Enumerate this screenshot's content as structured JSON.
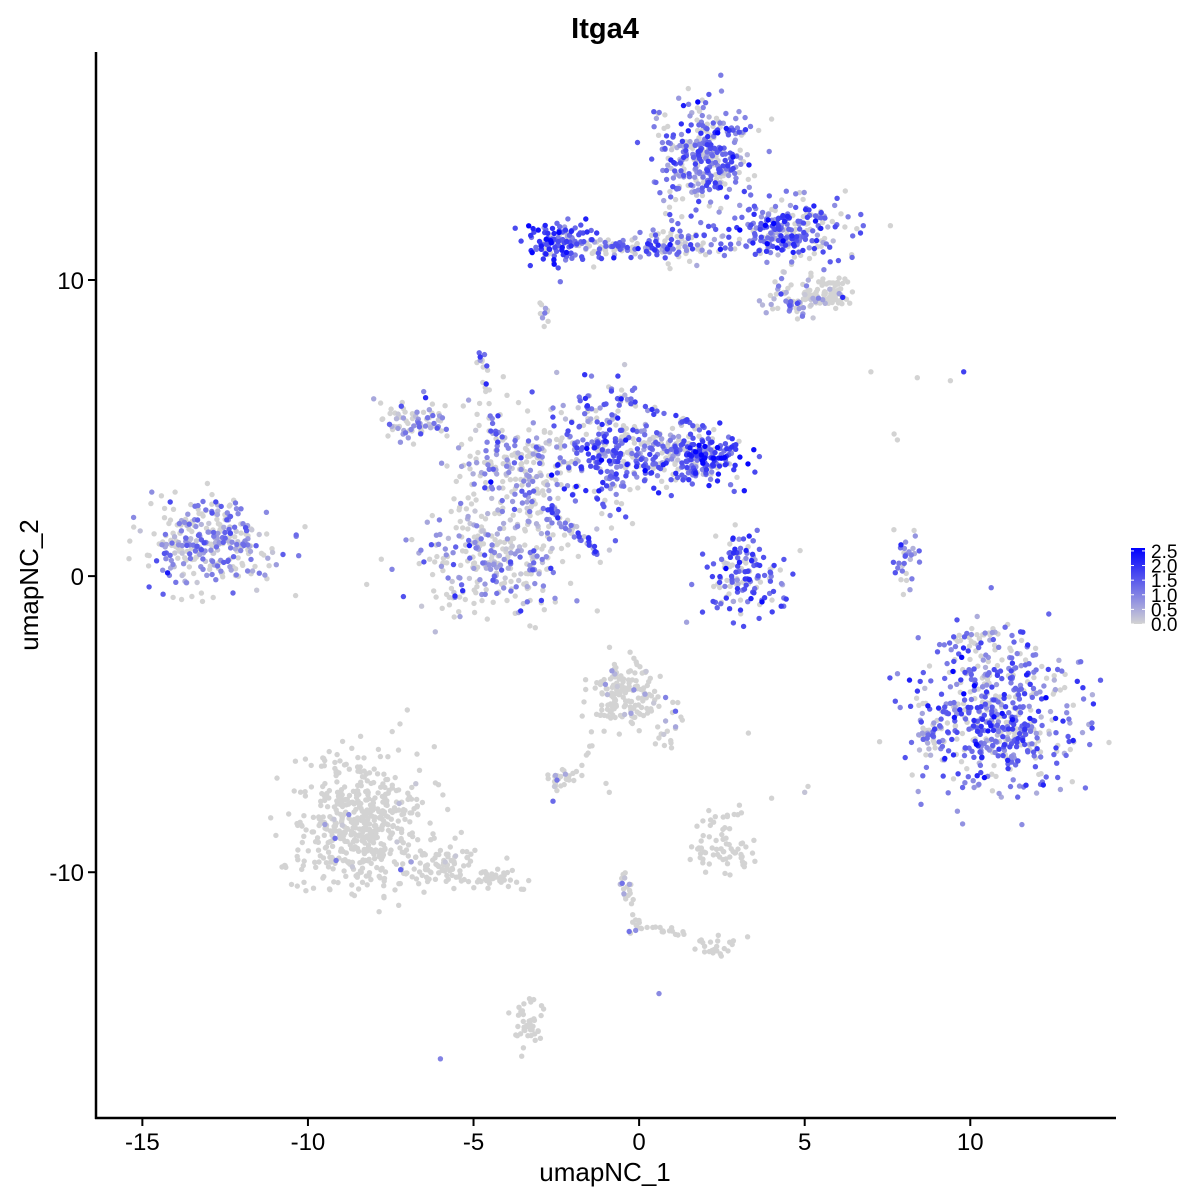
{
  "chart_data": {
    "type": "scatter",
    "title": "Itga4",
    "xlabel": "umapNC_1",
    "ylabel": "umapNC_2",
    "xlim": [
      -16.4,
      14.4
    ],
    "ylim": [
      -18.3,
      17.7
    ],
    "x_ticks": [
      -15,
      -10,
      -5,
      0,
      5,
      10
    ],
    "y_ticks": [
      -10,
      0,
      10
    ],
    "x_tick_labels": [
      "-15",
      "-10",
      "-5",
      "0",
      "5",
      "10"
    ],
    "y_tick_labels": [
      "-10",
      "0",
      "10"
    ],
    "grid": false,
    "color_scale": {
      "low": "#d3d3d3",
      "high": "#0000ff",
      "range": [
        0,
        2.6
      ],
      "ticks": [
        0.0,
        0.5,
        1.0,
        1.5,
        2.0,
        2.5
      ],
      "tick_labels": [
        "0.0",
        "0.5",
        "1.0",
        "1.5",
        "2.0",
        "2.5"
      ],
      "placement": "right"
    },
    "clusters": [
      {
        "cx": -12.9,
        "cy": 1.1,
        "sx": 1.0,
        "sy": 0.75,
        "n": 320,
        "expr_frac": 0.55,
        "expr_mean": 0.9
      },
      {
        "cx": -4.3,
        "cy": 0.6,
        "sx": 1.2,
        "sy": 1.0,
        "n": 300,
        "expr_frac": 0.45,
        "expr_mean": 0.8
      },
      {
        "cx": -6.9,
        "cy": 5.2,
        "sx": 0.6,
        "sy": 0.4,
        "n": 80,
        "expr_frac": 0.5,
        "expr_mean": 0.8
      },
      {
        "cx": -3.8,
        "cy": 3.6,
        "sx": 0.9,
        "sy": 1.0,
        "n": 220,
        "expr_frac": 0.5,
        "expr_mean": 0.9
      },
      {
        "cx": -1.2,
        "cy": 4.4,
        "sx": 0.9,
        "sy": 1.0,
        "n": 260,
        "expr_frac": 0.75,
        "expr_mean": 1.3
      },
      {
        "cx": 0.6,
        "cy": 4.1,
        "sx": 0.8,
        "sy": 0.5,
        "n": 160,
        "expr_frac": 0.7,
        "expr_mean": 1.2
      },
      {
        "cx": 2.1,
        "cy": 4.0,
        "sx": 0.5,
        "sy": 0.5,
        "n": 150,
        "expr_frac": 0.85,
        "expr_mean": 1.7
      },
      {
        "cx": -2.5,
        "cy": 11.3,
        "sx": 0.5,
        "sy": 0.35,
        "n": 120,
        "expr_frac": 0.85,
        "expr_mean": 1.6
      },
      {
        "cx": -0.5,
        "cy": 11.1,
        "sx": 1.0,
        "sy": 0.2,
        "n": 70,
        "expr_frac": 0.6,
        "expr_mean": 1.1
      },
      {
        "cx": 1.9,
        "cy": 14.2,
        "sx": 0.7,
        "sy": 0.9,
        "n": 330,
        "expr_frac": 0.7,
        "expr_mean": 1.2
      },
      {
        "cx": 4.4,
        "cy": 11.7,
        "sx": 0.9,
        "sy": 0.55,
        "n": 260,
        "expr_frac": 0.75,
        "expr_mean": 1.4
      },
      {
        "cx": 1.4,
        "cy": 11.2,
        "sx": 0.6,
        "sy": 0.35,
        "n": 60,
        "expr_frac": 0.6,
        "expr_mean": 1.1
      },
      {
        "cx": 4.9,
        "cy": 9.3,
        "sx": 0.5,
        "sy": 0.35,
        "n": 70,
        "expr_frac": 0.5,
        "expr_mean": 0.9
      },
      {
        "cx": 5.7,
        "cy": 9.6,
        "sx": 0.35,
        "sy": 0.25,
        "n": 70,
        "expr_frac": 0.05,
        "expr_mean": 0.4
      },
      {
        "cx": 3.2,
        "cy": -0.3,
        "sx": 0.7,
        "sy": 0.6,
        "n": 110,
        "expr_frac": 0.7,
        "expr_mean": 1.3
      },
      {
        "cx": 3.1,
        "cy": 0.8,
        "sx": 0.25,
        "sy": 0.35,
        "n": 40,
        "expr_frac": 0.8,
        "expr_mean": 1.5
      },
      {
        "cx": 8.0,
        "cy": 0.4,
        "sx": 0.2,
        "sy": 0.5,
        "n": 30,
        "expr_frac": 0.8,
        "expr_mean": 1.2
      },
      {
        "cx": 10.8,
        "cy": -4.7,
        "sx": 1.2,
        "sy": 1.3,
        "n": 560,
        "expr_frac": 0.72,
        "expr_mean": 1.3
      },
      {
        "cx": 8.8,
        "cy": -5.2,
        "sx": 0.25,
        "sy": 0.4,
        "n": 40,
        "expr_frac": 0.6,
        "expr_mean": 1.0
      },
      {
        "cx": -8.5,
        "cy": -8.4,
        "sx": 1.0,
        "sy": 1.1,
        "n": 520,
        "expr_frac": 0.02,
        "expr_mean": 0.5
      },
      {
        "cx": -6.1,
        "cy": -9.8,
        "sx": 0.9,
        "sy": 0.35,
        "n": 90,
        "expr_frac": 0.04,
        "expr_mean": 0.5
      },
      {
        "cx": -4.3,
        "cy": -10.3,
        "sx": 0.5,
        "sy": 0.2,
        "n": 30,
        "expr_frac": 0.0,
        "expr_mean": 0.3
      },
      {
        "cx": -0.4,
        "cy": -4.0,
        "sx": 0.5,
        "sy": 0.6,
        "n": 140,
        "expr_frac": 0.08,
        "expr_mean": 0.6
      },
      {
        "cx": 0.9,
        "cy": -4.8,
        "sx": 0.2,
        "sy": 0.5,
        "n": 20,
        "expr_frac": 0.1,
        "expr_mean": 0.6
      },
      {
        "cx": -2.4,
        "cy": -6.8,
        "sx": 0.25,
        "sy": 0.2,
        "n": 25,
        "expr_frac": 0.3,
        "expr_mean": 0.8
      },
      {
        "cx": 2.4,
        "cy": -9.2,
        "sx": 0.5,
        "sy": 0.4,
        "n": 60,
        "expr_frac": 0.05,
        "expr_mean": 0.5
      },
      {
        "cx": -3.3,
        "cy": -15.2,
        "sx": 0.25,
        "sy": 0.45,
        "n": 40,
        "expr_frac": 0.0,
        "expr_mean": 0.3
      },
      {
        "cx": 2.3,
        "cy": -12.6,
        "sx": 0.3,
        "sy": 0.2,
        "n": 20,
        "expr_frac": 0.0,
        "expr_mean": 0.3
      },
      {
        "cx": 10.0,
        "cy": -2.1,
        "sx": 0.6,
        "sy": 0.2,
        "n": 30,
        "expr_frac": 0.4,
        "expr_mean": 0.8
      }
    ],
    "stems": [
      {
        "x1": -4.8,
        "y1": 7.5,
        "x2": -4.3,
        "y2": 4.2,
        "n": 25,
        "expr_frac": 0.6,
        "expr_mean": 1.2
      },
      {
        "x1": -2.8,
        "y1": 2.4,
        "x2": -1.2,
        "y2": 0.7,
        "n": 35,
        "expr_frac": 0.9,
        "expr_mean": 1.3
      },
      {
        "x1": -2.5,
        "y1": 11.3,
        "x2": 1.2,
        "y2": 11.0,
        "n": 40,
        "expr_frac": 0.6,
        "expr_mean": 1.2
      },
      {
        "x1": -0.4,
        "y1": -3.5,
        "x2": -1.9,
        "y2": -6.7,
        "n": 18,
        "expr_frac": 0.1,
        "expr_mean": 0.6
      },
      {
        "x1": -0.5,
        "y1": -9.8,
        "x2": -0.1,
        "y2": -12.0,
        "n": 25,
        "expr_frac": 0.2,
        "expr_mean": 0.7
      },
      {
        "x1": -0.1,
        "y1": -11.7,
        "x2": 2.2,
        "y2": -12.4,
        "n": 20,
        "expr_frac": 0.0,
        "expr_mean": 0.3
      },
      {
        "x1": 1.8,
        "y1": -8.5,
        "x2": 3.2,
        "y2": -7.8,
        "n": 12,
        "expr_frac": 0.0,
        "expr_mean": 0.3
      },
      {
        "x1": -2.9,
        "y1": 9.2,
        "x2": -2.8,
        "y2": 8.5,
        "n": 10,
        "expr_frac": 0.3,
        "expr_mean": 0.8
      },
      {
        "x1": -0.5,
        "y1": 6.0,
        "x2": 1.8,
        "y2": 5.0,
        "n": 25,
        "expr_frac": 0.8,
        "expr_mean": 1.4
      }
    ],
    "single_points": [
      {
        "x": -4.8,
        "y": 7.4,
        "v": 1.9
      },
      {
        "x": -4.6,
        "y": 7.1,
        "v": 1.6
      },
      {
        "x": 9.8,
        "y": 6.9,
        "v": 1.8
      },
      {
        "x": 7.0,
        "y": 6.9,
        "v": 0.0
      },
      {
        "x": 8.4,
        "y": 6.7,
        "v": 0.0
      },
      {
        "x": 9.4,
        "y": 6.6,
        "v": 0.0
      },
      {
        "x": 7.7,
        "y": 4.8,
        "v": 0.0
      },
      {
        "x": 7.8,
        "y": 4.6,
        "v": 0.0
      },
      {
        "x": 5.0,
        "y": -7.3,
        "v": 0.2
      },
      {
        "x": 5.1,
        "y": -7.1,
        "v": 0.0
      },
      {
        "x": 3.3,
        "y": -5.3,
        "v": 0.0
      },
      {
        "x": 4.0,
        "y": -7.5,
        "v": 0.0
      },
      {
        "x": -6.0,
        "y": -16.3,
        "v": 1.0
      },
      {
        "x": 0.6,
        "y": -14.1,
        "v": 0.9
      },
      {
        "x": -1.0,
        "y": -7.0,
        "v": 0.0
      },
      {
        "x": -0.9,
        "y": -7.3,
        "v": 0.0
      },
      {
        "x": -2.6,
        "y": -7.6,
        "v": 1.3
      },
      {
        "x": 0.8,
        "y": -4.1,
        "v": 1.0
      },
      {
        "x": -0.3,
        "y": -12.0,
        "v": 1.2
      },
      {
        "x": 1.1,
        "y": -12.1,
        "v": 0.0
      }
    ]
  }
}
